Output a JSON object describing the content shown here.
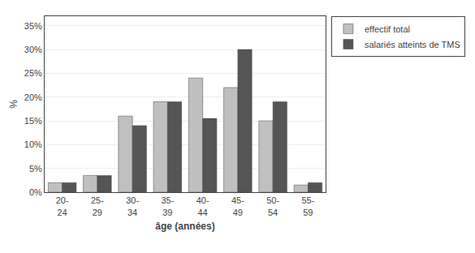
{
  "chart_data": {
    "type": "bar",
    "categories": [
      "20-\n24",
      "25-\n29",
      "30-\n34",
      "35-\n39",
      "40-\n44",
      "45-\n49",
      "50-\n54",
      "55-\n59"
    ],
    "series": [
      {
        "name": "effectif total",
        "color": "#c0c0c0",
        "values": [
          2,
          3.5,
          16,
          19,
          24,
          22,
          15,
          1.5
        ]
      },
      {
        "name": "salariés atteints de TMS",
        "color": "#555555",
        "values": [
          2,
          3.5,
          14,
          19,
          15.5,
          30,
          19,
          2
        ]
      }
    ],
    "xlabel": "âge (années)",
    "ylabel": "%",
    "ylim": [
      0,
      37
    ],
    "yticks": [
      {
        "value": 0,
        "label": "0%"
      },
      {
        "value": 5,
        "label": "5%"
      },
      {
        "value": 10,
        "label": "10%"
      },
      {
        "value": 15,
        "label": "15%"
      },
      {
        "value": 20,
        "label": "20%"
      },
      {
        "value": 25,
        "label": "25%"
      },
      {
        "value": 30,
        "label": "30%"
      },
      {
        "value": 35,
        "label": "35%"
      }
    ],
    "grid": true,
    "legend": "right"
  }
}
